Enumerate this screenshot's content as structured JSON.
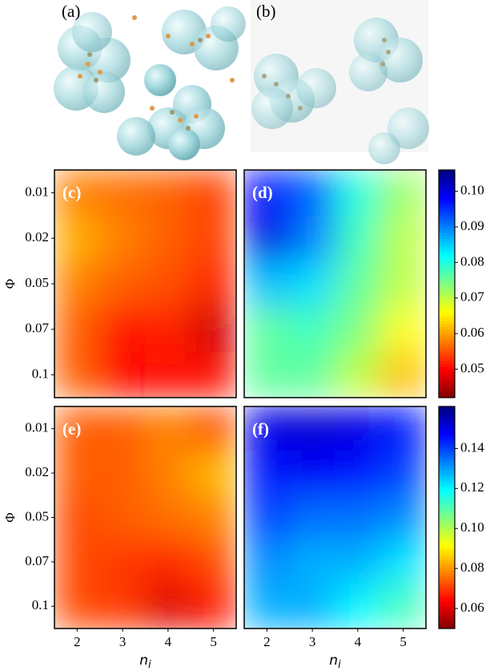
{
  "images": [
    {
      "label": "(a)"
    },
    {
      "label": "(b)"
    }
  ],
  "chart_data": [
    {
      "type": "heatmap",
      "label": "(c)",
      "colormap": "jet_r",
      "ylabel": "Φ",
      "y": [
        "0.01",
        "0.02",
        "0.05",
        "0.07",
        "0.1"
      ],
      "z": [
        [
          0.058,
          0.057,
          0.056,
          0.054
        ],
        [
          0.061,
          0.058,
          0.056,
          0.054
        ],
        [
          0.058,
          0.056,
          0.055,
          0.052
        ],
        [
          0.056,
          0.051,
          0.052,
          0.047
        ],
        [
          0.056,
          0.05,
          0.051,
          0.051
        ]
      ]
    },
    {
      "type": "heatmap",
      "label": "(d)",
      "colormap": "jet_r",
      "z": [
        [
          0.098,
          0.092,
          0.08,
          0.072
        ],
        [
          0.1,
          0.09,
          0.078,
          0.07
        ],
        [
          0.086,
          0.084,
          0.076,
          0.07
        ],
        [
          0.076,
          0.078,
          0.074,
          0.066
        ],
        [
          0.076,
          0.076,
          0.07,
          0.062
        ]
      ],
      "clim": [
        0.042,
        0.106
      ],
      "cticks": [
        0.05,
        0.06,
        0.07,
        0.08,
        0.09,
        {
          "value": 0.1,
          "label": "0.10"
        }
      ]
    },
    {
      "type": "heatmap",
      "label": "(e)",
      "colormap": "jet_r",
      "ylabel": "Φ",
      "y": [
        "0.01",
        "0.02",
        "0.05",
        "0.07",
        "0.1"
      ],
      "xlim": [
        1.5,
        5.5
      ],
      "xticks": [
        2,
        3,
        4,
        5
      ],
      "xlabel": {
        "base": "n",
        "sub": "i"
      },
      "z": [
        [
          0.074,
          0.074,
          0.078,
          0.072
        ],
        [
          0.074,
          0.074,
          0.078,
          0.084
        ],
        [
          0.072,
          0.074,
          0.076,
          0.078
        ],
        [
          0.072,
          0.07,
          0.068,
          0.072
        ],
        [
          0.072,
          0.07,
          0.06,
          0.066
        ]
      ]
    },
    {
      "type": "heatmap",
      "label": "(f)",
      "colormap": "jet_r",
      "xlim": [
        1.5,
        5.5
      ],
      "xticks": [
        2,
        3,
        4,
        5
      ],
      "xlabel": {
        "base": "n",
        "sub": "i"
      },
      "z": [
        [
          0.15,
          0.152,
          0.15,
          0.145
        ],
        [
          0.145,
          0.148,
          0.146,
          0.14
        ],
        [
          0.14,
          0.135,
          0.135,
          0.132
        ],
        [
          0.132,
          0.128,
          0.128,
          0.122
        ],
        [
          0.128,
          0.128,
          0.12,
          0.112
        ]
      ],
      "clim": [
        0.05,
        0.161
      ],
      "cticks": [
        0.06,
        0.08,
        {
          "value": 0.1,
          "label": "0.10"
        },
        0.12,
        0.14
      ]
    }
  ]
}
